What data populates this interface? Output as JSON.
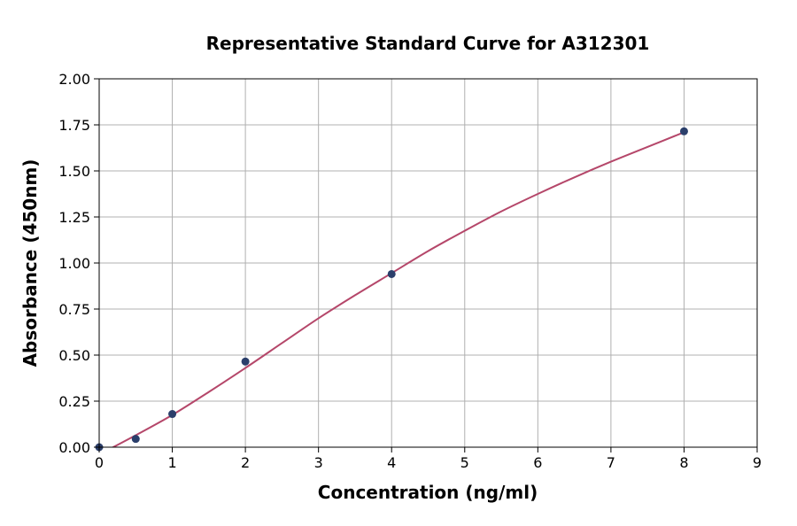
{
  "chart_data": {
    "type": "scatter",
    "title": "Representative Standard Curve for A312301",
    "xlabel": "Concentration (ng/ml)",
    "ylabel": "Absorbance (450nm)",
    "xlim": [
      0,
      9
    ],
    "ylim": [
      0,
      2.0
    ],
    "xticks": [
      "0",
      "1",
      "2",
      "3",
      "4",
      "5",
      "6",
      "7",
      "8",
      "9"
    ],
    "yticks": [
      "0.00",
      "0.25",
      "0.50",
      "0.75",
      "1.00",
      "1.25",
      "1.50",
      "1.75",
      "2.00"
    ],
    "grid": true,
    "legend": "none",
    "series": [
      {
        "kind": "points",
        "color": "#2b3f6b",
        "x": [
          0,
          0.5,
          1,
          2,
          4,
          8
        ],
        "y": [
          0.0,
          0.045,
          0.18,
          0.465,
          0.94,
          1.715
        ]
      },
      {
        "kind": "fit-curve",
        "color": "#b5476a",
        "x": [
          0,
          0.5,
          1,
          1.5,
          2,
          2.5,
          3,
          3.5,
          4,
          4.5,
          5,
          5.5,
          6,
          6.5,
          7,
          7.5,
          8
        ],
        "y": [
          -0.04,
          0.065,
          0.175,
          0.3,
          0.43,
          0.565,
          0.7,
          0.825,
          0.945,
          1.065,
          1.175,
          1.28,
          1.375,
          1.465,
          1.55,
          1.63,
          1.71
        ]
      }
    ]
  }
}
